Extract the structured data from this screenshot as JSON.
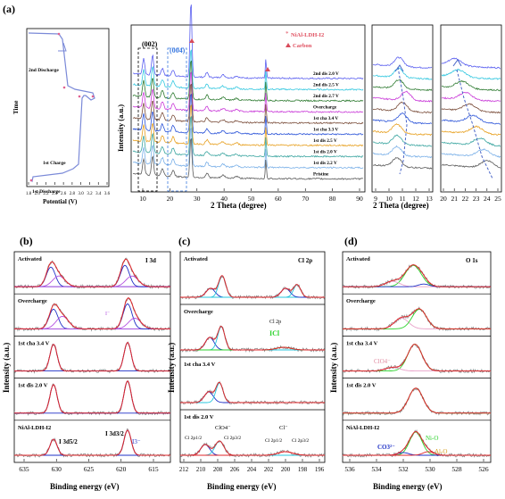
{
  "panel_labels": {
    "a": "(a)",
    "b": "(b)",
    "c": "(c)",
    "d": "(d)"
  },
  "a1": {
    "ylabel": "Time",
    "xlabel": "Potential (V)",
    "xticks": [
      "1.8",
      "2.0",
      "2.2",
      "2.4",
      "2.6",
      "2.8",
      "3.0",
      "3.2",
      "3.4",
      "3.6"
    ],
    "ann": [
      "2nd Discharge",
      "1st Charge",
      "1st Discharge"
    ]
  },
  "a2": {
    "ylabel": "Intensity (a.u.)",
    "xlabel": "2 Theta (degree)",
    "xticks": [
      "10",
      "20",
      "30",
      "40",
      "50",
      "60",
      "70",
      "80",
      "90"
    ],
    "peak002": "(002)",
    "peak004": "(004)",
    "legend": [
      "NiAl-LDH-I2",
      "Carbon"
    ],
    "traces": [
      "2nd dis 2.0 V",
      "2nd dis 2.5 V",
      "2nd dis 2.7 V",
      "Overcharge",
      "1st cha 3.4 V",
      "1st cha 3.3 V",
      "1st dis 2.5 V",
      "1st dis 2.0 V",
      "1st dis 2.2 V",
      "Pristine"
    ]
  },
  "a3": {
    "xlabel": "2 Theta (degree)",
    "xticks": [
      "9",
      "10",
      "11",
      "12",
      "13"
    ]
  },
  "a4": {
    "xticks": [
      "20",
      "21",
      "22",
      "23",
      "24",
      "25"
    ]
  },
  "b": {
    "ylabel": "Intensity (a.u.)",
    "xlabel": "Binding energy (eV)",
    "title": "I 3d",
    "xticks": [
      "635",
      "630",
      "625",
      "620",
      "615"
    ],
    "rows": [
      "Activated",
      "Overcharge",
      "1st cha 3.4 V",
      "1st dis 2.0 V",
      "NiAl-LDH-I2"
    ],
    "ann": {
      "iminus": "I⁻",
      "i3d52": "I 3d5/2",
      "i3d32": "I 3d3/2",
      "i3": "I3⁻"
    }
  },
  "c": {
    "ylabel": "Intensity (a.u.)",
    "xlabel": "Binding energy (eV)",
    "title": "Cl 2p",
    "xticks": [
      "212",
      "210",
      "208",
      "206",
      "204",
      "202",
      "200",
      "198",
      "196"
    ],
    "rows": [
      "Activated",
      "Overcharge",
      "1st cha 3.4 V",
      "1st dis 2.0 V"
    ],
    "ann": {
      "cl2p": "Cl 2p",
      "icl": "ICl",
      "clo4": "ClO4⁻",
      "clminus": "Cl⁻",
      "c1": "Cl 2p1/2",
      "c2": "Cl 2p3/2",
      "c3": "Cl 2p1/2",
      "c4": "Cl 2p3/2"
    }
  },
  "d": {
    "ylabel": "Intensity (a.u.)",
    "xlabel": "Binding energy (eV)",
    "title": "O 1s",
    "xticks": [
      "536",
      "534",
      "532",
      "530",
      "528",
      "526"
    ],
    "rows": [
      "Activated",
      "Overcharge",
      "1st cha 3.4 V",
      "1st dis 2.0 V",
      "NiAl-LDH-I2"
    ],
    "ann": {
      "clo4": "ClO4⁻",
      "co3": "CO3²⁻",
      "nio": "Ni-O",
      "alo": "Al-O"
    }
  },
  "colors": {
    "red": "#e0262a",
    "blue": "#1d2fc6",
    "cyan": "#27c6dc",
    "green": "#2bd22b",
    "purple": "#b451e0",
    "pink": "#e8a0c8",
    "gray": "#8a8a8a"
  }
}
